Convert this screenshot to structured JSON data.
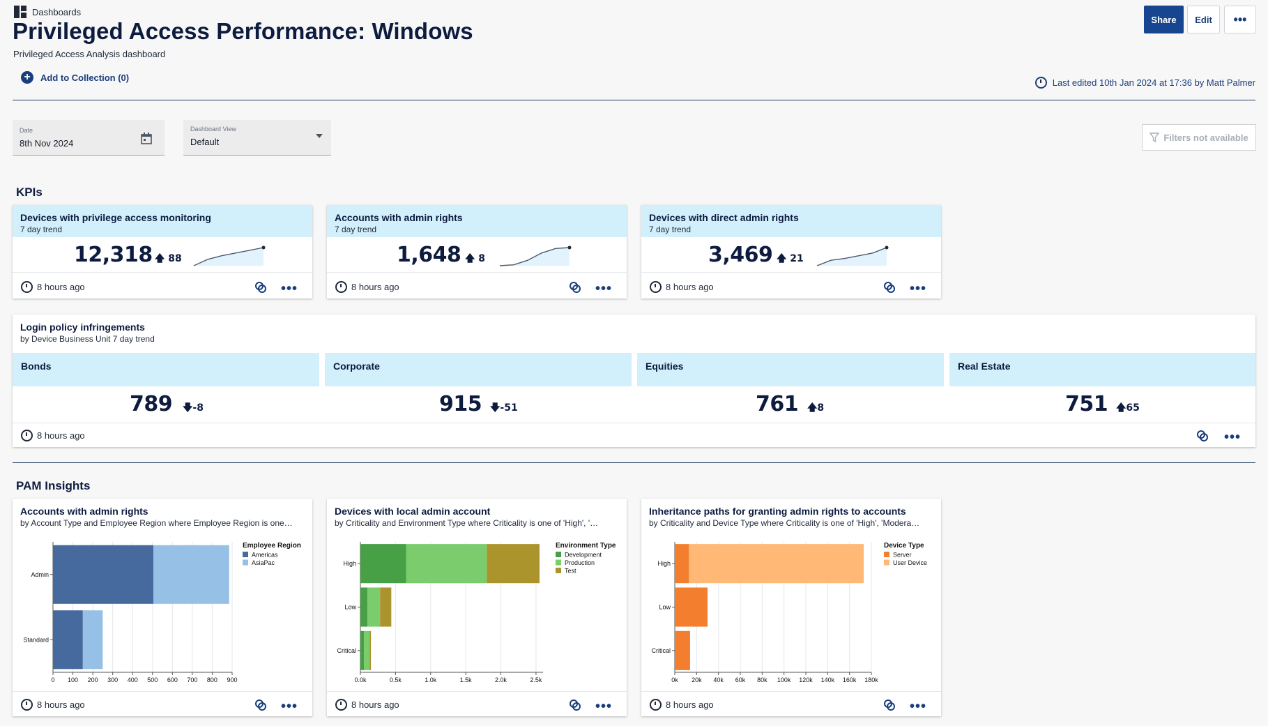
{
  "header": {
    "breadcrumb": "Dashboards",
    "title": "Privileged Access Performance: Windows",
    "subtitle": "Privileged Access Analysis dashboard",
    "add_to_collection": "Add to Collection (0)",
    "last_edited": "Last edited 10th Jan 2024 at 17:36 by Matt Palmer",
    "share_label": "Share",
    "edit_label": "Edit",
    "more_label": "•••"
  },
  "filters": {
    "date_label": "Date",
    "date_value": "8th Nov 2024",
    "view_label": "Dashboard View",
    "view_value": "Default",
    "filters_na": "Filters not available"
  },
  "kpis_section": "KPIs",
  "kpis": [
    {
      "title": "Devices with privilege access monitoring",
      "sub": "7 day trend",
      "value": "12,318",
      "delta": "88",
      "direction": "up",
      "updated": "8 hours ago",
      "trend": [
        0.0,
        0.35,
        0.55,
        0.7,
        0.85,
        1.0
      ]
    },
    {
      "title": "Accounts with admin rights",
      "sub": "7 day trend",
      "value": "1,648",
      "delta": "8",
      "direction": "up",
      "updated": "8 hours ago",
      "trend": [
        0.0,
        0.05,
        0.3,
        0.7,
        0.95,
        1.0
      ]
    },
    {
      "title": "Devices with direct admin rights",
      "sub": "7 day trend",
      "value": "3,469",
      "delta": "21",
      "direction": "up",
      "updated": "8 hours ago",
      "trend": [
        0.0,
        0.3,
        0.4,
        0.55,
        0.7,
        1.0
      ]
    }
  ],
  "login_policy": {
    "title": "Login policy infringements",
    "sub": "by Device Business Unit 7 day trend",
    "updated": "8 hours ago",
    "units": [
      {
        "name": "Bonds",
        "value": "789",
        "delta": "-8",
        "direction": "down"
      },
      {
        "name": "Corporate",
        "value": "915",
        "delta": "-51",
        "direction": "down"
      },
      {
        "name": "Equities",
        "value": "761",
        "delta": "8",
        "direction": "up"
      },
      {
        "name": "Real Estate",
        "value": "751",
        "delta": "65",
        "direction": "up"
      }
    ]
  },
  "pam_section": "PAM Insights",
  "colors": {
    "americas": "#466a9e",
    "asiapac": "#96c0e6",
    "development": "#47a046",
    "production": "#7acc6c",
    "test": "#ac942c",
    "server": "#f27e2e",
    "user_device": "#ffb875",
    "accent": "#17458f",
    "header_blue": "#d2effc"
  },
  "chart_data": [
    {
      "type": "bar",
      "orientation": "horizontal",
      "stacked": true,
      "title": "Accounts with admin rights",
      "subtitle": "by Account Type and Employee Region where Employee Region is one…",
      "categories": [
        "Admin",
        "Standard"
      ],
      "series": [
        {
          "name": "Americas",
          "values": [
            505,
            150
          ]
        },
        {
          "name": "AsiaPac",
          "values": [
            380,
            100
          ]
        }
      ],
      "legend_title": "Employee Region",
      "xlim": [
        0,
        900
      ],
      "xticks": [
        "0",
        "100",
        "200",
        "300",
        "400",
        "500",
        "600",
        "700",
        "800",
        "900"
      ],
      "xtick_values": [
        0,
        100,
        200,
        300,
        400,
        500,
        600,
        700,
        800,
        900
      ],
      "grid": true,
      "legend_position": "right",
      "updated": "8 hours ago"
    },
    {
      "type": "bar",
      "orientation": "horizontal",
      "stacked": true,
      "title": "Devices with local admin account",
      "subtitle": "by Criticality and Environment Type where Criticality is one of 'High', '…",
      "categories": [
        "High",
        "Low",
        "Critical"
      ],
      "series": [
        {
          "name": "Development",
          "values": [
            650,
            100,
            50
          ]
        },
        {
          "name": "Production",
          "values": [
            1150,
            180,
            80
          ]
        },
        {
          "name": "Test",
          "values": [
            750,
            160,
            20
          ]
        }
      ],
      "legend_title": "Environment Type",
      "xlim": [
        0,
        2600
      ],
      "xticks": [
        "0.0k",
        "0.5k",
        "1.0k",
        "1.5k",
        "2.0k",
        "2.5k"
      ],
      "xtick_values": [
        0,
        500,
        1000,
        1500,
        2000,
        2500
      ],
      "grid": true,
      "legend_position": "right",
      "updated": "8 hours ago"
    },
    {
      "type": "bar",
      "orientation": "horizontal",
      "stacked": true,
      "title": "Inheritance paths for granting admin rights to accounts",
      "subtitle": "by Criticality and Device Type where Criticality is one of 'High', 'Modera…",
      "categories": [
        "High",
        "Low",
        "Critical"
      ],
      "series": [
        {
          "name": "Server",
          "values": [
            13000,
            30000,
            14000
          ]
        },
        {
          "name": "User Device",
          "values": [
            160000,
            0,
            0
          ]
        }
      ],
      "legend_title": "Device Type",
      "xlim": [
        0,
        180000
      ],
      "xticks": [
        "0k",
        "20k",
        "40k",
        "60k",
        "80k",
        "100k",
        "120k",
        "140k",
        "160k",
        "180k"
      ],
      "xtick_values": [
        0,
        20000,
        40000,
        60000,
        80000,
        100000,
        120000,
        140000,
        160000,
        180000
      ],
      "grid": true,
      "legend_position": "right",
      "updated": "8 hours ago"
    }
  ]
}
